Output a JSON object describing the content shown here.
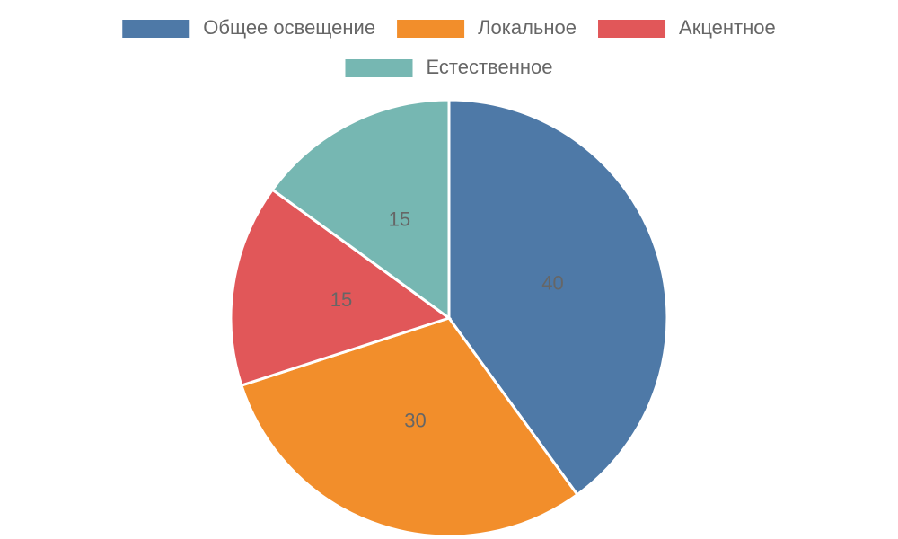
{
  "chart_data": {
    "type": "pie",
    "categories": [
      "Общее освещение",
      "Локальное",
      "Акцентное",
      "Естественное"
    ],
    "values": [
      40,
      30,
      15,
      15
    ],
    "colors": [
      "#4e79a7",
      "#f28e2b",
      "#e15759",
      "#76b7b2"
    ],
    "legend": "top"
  }
}
